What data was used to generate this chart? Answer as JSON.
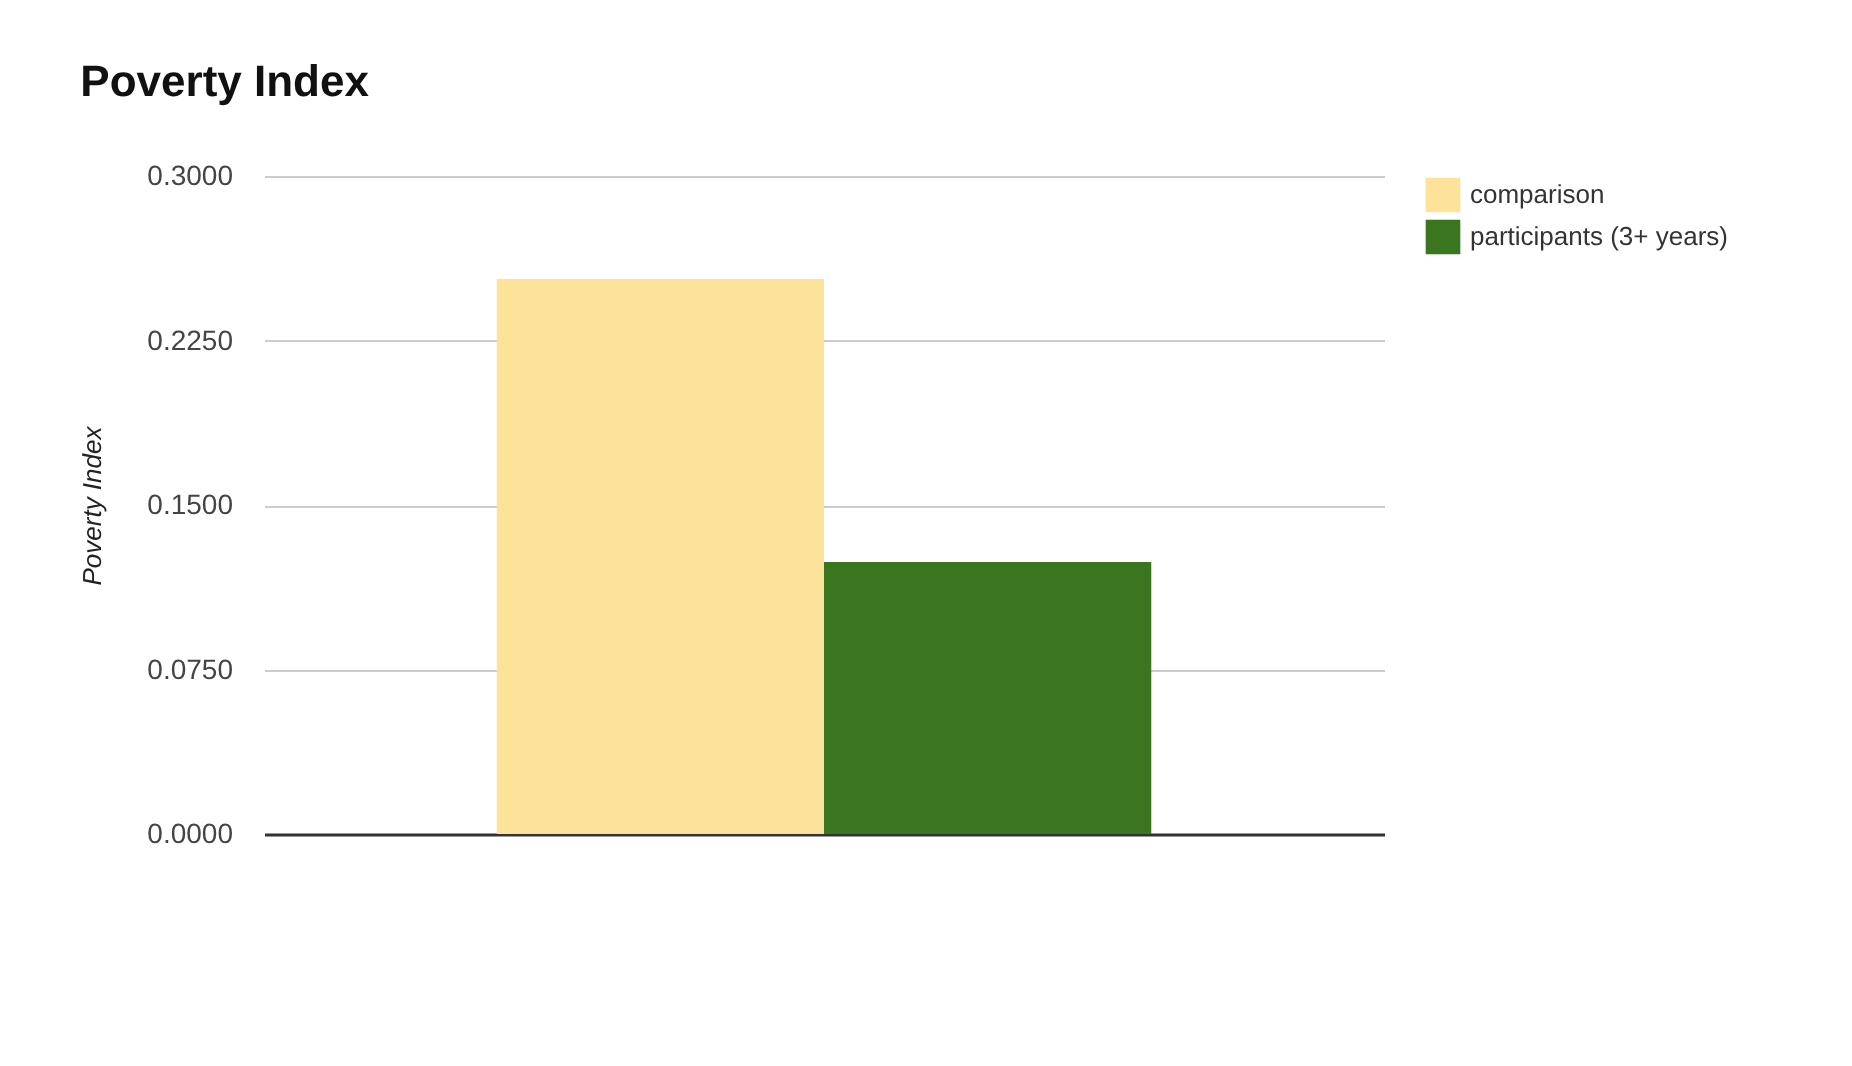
{
  "chart_data": {
    "type": "bar",
    "title": "Poverty Index",
    "ylabel": "Poverty Index",
    "categories": [
      null
    ],
    "series": [
      {
        "name": "comparison",
        "color": "#fde39a",
        "values": [
          0.253
        ]
      },
      {
        "name": "participants (3+ years)",
        "color": "#3a761f",
        "values": [
          0.124
        ]
      }
    ],
    "ylim": [
      0,
      0.3
    ],
    "yticks": [
      {
        "value": 0,
        "label": "0.0000"
      },
      {
        "value": 0.075,
        "label": "0.0750"
      },
      {
        "value": 0.15,
        "label": "0.1500"
      },
      {
        "value": 0.225,
        "label": "0.2250"
      },
      {
        "value": 0.3,
        "label": "0.3000"
      }
    ],
    "grid": "y",
    "legend": "top right",
    "tick_labels": "y"
  }
}
